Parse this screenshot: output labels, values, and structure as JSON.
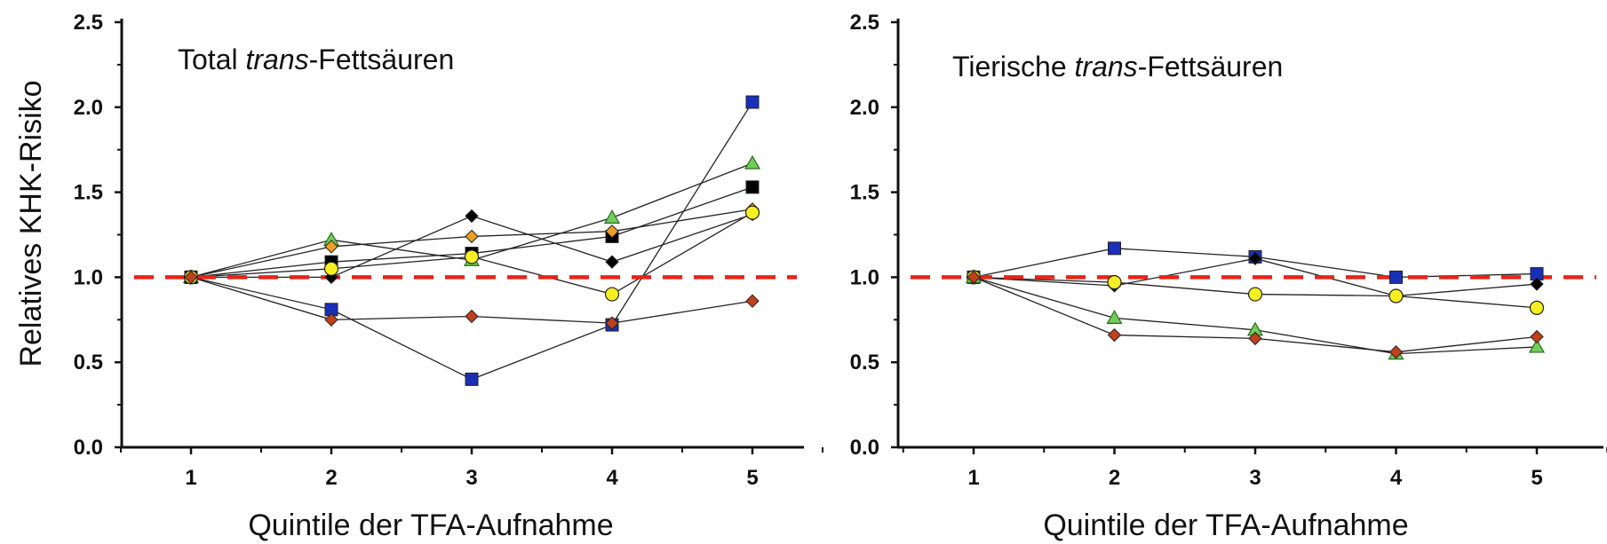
{
  "ylabel": "Relatives KHK-Risiko",
  "chart_data": [
    {
      "type": "line",
      "title_parts": [
        "Total ",
        "trans",
        "-Fettsäuren"
      ],
      "xlabel": "Quintile der TFA-Aufnahme",
      "categories": [
        "1",
        "2",
        "3",
        "4",
        "5"
      ],
      "yticks": [
        "0.0",
        "0.5",
        "1.0",
        "1.5",
        "2.0",
        "2.5"
      ],
      "ylim": [
        0,
        2.5
      ],
      "reference_line": {
        "y": 1.0,
        "color": "#e8221b",
        "style": "dashed"
      },
      "series": [
        {
          "marker": "square",
          "color": "#1a2fb8",
          "values": [
            1.0,
            0.81,
            0.4,
            0.72,
            2.03
          ]
        },
        {
          "marker": "triangle",
          "color": "#6fcf5a",
          "values": [
            1.0,
            1.22,
            1.1,
            1.35,
            1.67
          ]
        },
        {
          "marker": "square",
          "color": "#000000",
          "values": [
            1.0,
            1.09,
            1.14,
            1.24,
            1.53
          ]
        },
        {
          "marker": "diamond",
          "color": "#f0a020",
          "values": [
            1.0,
            1.18,
            1.24,
            1.27,
            1.4
          ]
        },
        {
          "marker": "diamond",
          "color": "#000000",
          "values": [
            1.0,
            1.0,
            1.36,
            1.09,
            1.37
          ]
        },
        {
          "marker": "circle",
          "color": "#f6ef22",
          "values": [
            1.0,
            1.05,
            1.12,
            0.9,
            1.38
          ]
        },
        {
          "marker": "diamond",
          "color": "#c0401a",
          "values": [
            1.0,
            0.75,
            0.77,
            0.73,
            0.86
          ]
        }
      ]
    },
    {
      "type": "line",
      "title_parts": [
        "Tierische ",
        "trans",
        "-Fettsäuren"
      ],
      "xlabel": "Quintile der TFA-Aufnahme",
      "categories": [
        "1",
        "2",
        "3",
        "4",
        "5"
      ],
      "yticks": [
        "0.0",
        "0.5",
        "1.0",
        "1.5",
        "2.0",
        "2.5"
      ],
      "ylim": [
        0,
        2.5
      ],
      "reference_line": {
        "y": 1.0,
        "color": "#e8221b",
        "style": "dashed"
      },
      "series": [
        {
          "marker": "square",
          "color": "#1a2fb8",
          "values": [
            1.0,
            1.17,
            1.12,
            1.0,
            1.02
          ]
        },
        {
          "marker": "diamond",
          "color": "#000000",
          "values": [
            1.0,
            0.95,
            1.11,
            0.89,
            0.96
          ]
        },
        {
          "marker": "circle",
          "color": "#f6ef22",
          "values": [
            1.0,
            0.97,
            0.9,
            0.89,
            0.82
          ]
        },
        {
          "marker": "triangle",
          "color": "#6fcf5a",
          "values": [
            1.0,
            0.76,
            0.69,
            0.55,
            0.59
          ]
        },
        {
          "marker": "diamond",
          "color": "#c0401a",
          "values": [
            1.0,
            0.66,
            0.64,
            0.56,
            0.65
          ]
        }
      ]
    }
  ]
}
